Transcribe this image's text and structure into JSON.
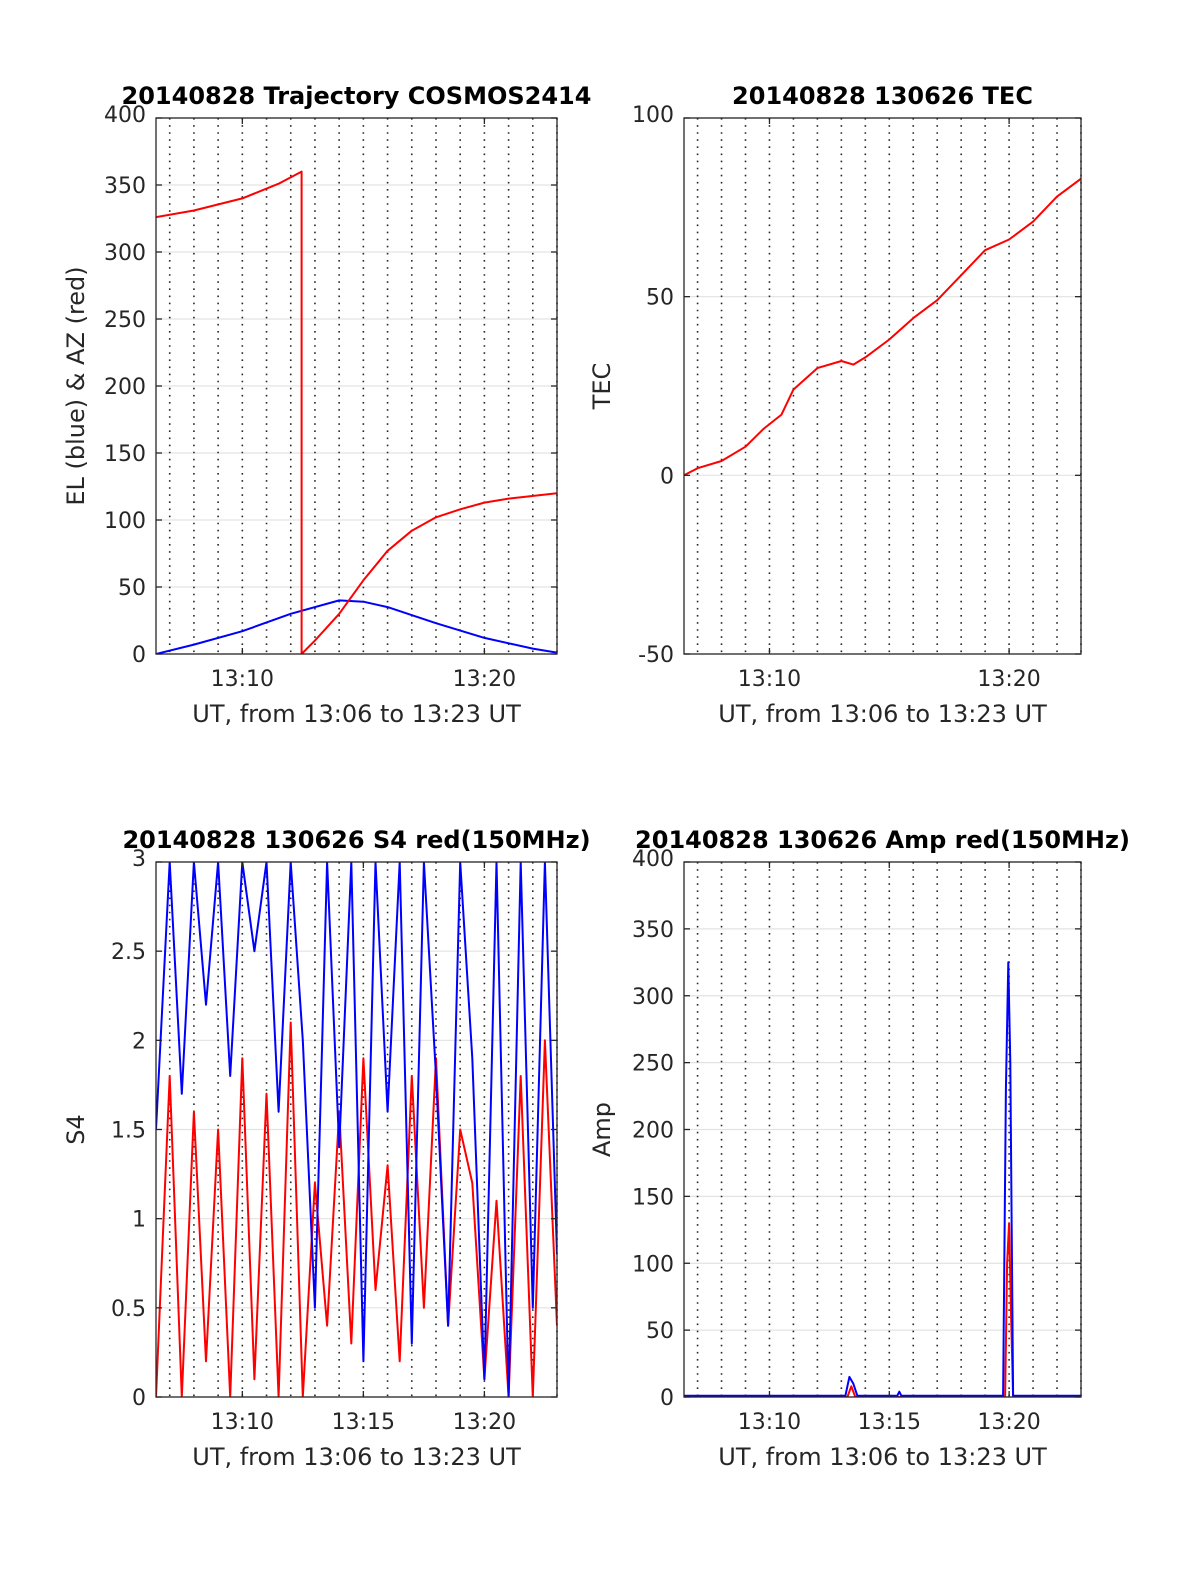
{
  "chart_data": [
    {
      "type": "line",
      "title": "20140828 Trajectory COSMOS2414",
      "xlabel": "UT, from 13:06 to 13:23 UT",
      "ylabel": "EL (blue) & AZ (red)",
      "xlim": [
        "13:06:26",
        "13:23:00"
      ],
      "ylim": [
        0,
        400
      ],
      "xticks": [
        "13:10",
        "13:20"
      ],
      "yticks": [
        "0",
        "50",
        "100",
        "150",
        "200",
        "250",
        "300",
        "350",
        "400"
      ],
      "grid": true,
      "minor_vertical_grid": "dotted, every 1 minute",
      "series": [
        {
          "color": "#0000ff",
          "x": [
            "13:06:26",
            "13:08:00",
            "13:10:00",
            "13:12:00",
            "13:14:00",
            "13:15:00",
            "13:16:00",
            "13:18:00",
            "13:20:00",
            "13:22:00",
            "13:23:00"
          ],
          "values": [
            0,
            7,
            17,
            30,
            40,
            39,
            35,
            23,
            12,
            4,
            1
          ]
        },
        {
          "color": "#ff0000",
          "x": [
            "13:06:26",
            "13:08:00",
            "13:10:00",
            "13:11:30",
            "13:12:27",
            "13:12:27",
            "13:13:00",
            "13:14:00",
            "13:15:00",
            "13:16:00",
            "13:17:00",
            "13:18:00",
            "13:19:00",
            "13:20:00",
            "13:21:00",
            "13:23:00"
          ],
          "values": [
            326,
            331,
            340,
            351,
            360,
            0,
            10,
            30,
            55,
            77,
            92,
            102,
            108,
            113,
            116,
            120
          ]
        }
      ]
    },
    {
      "type": "line",
      "title": "20140828 130626 TEC",
      "xlabel": "UT, from 13:06 to 13:23 UT",
      "ylabel": "TEC",
      "xlim": [
        "13:06:26",
        "13:23:00"
      ],
      "ylim": [
        -50,
        100
      ],
      "xticks": [
        "13:10",
        "13:20"
      ],
      "yticks": [
        "-50",
        "0",
        "50",
        "100"
      ],
      "grid": true,
      "minor_vertical_grid": "dotted, every 1 minute",
      "series": [
        {
          "color": "#ff0000",
          "x": [
            "13:06:26",
            "13:07:00",
            "13:08:00",
            "13:09:00",
            "13:09:45",
            "13:10:30",
            "13:11:00",
            "13:12:00",
            "13:13:00",
            "13:13:30",
            "13:14:00",
            "13:15:00",
            "13:16:00",
            "13:17:00",
            "13:18:00",
            "13:19:00",
            "13:20:00",
            "13:21:00",
            "13:22:00",
            "13:23:00"
          ],
          "values": [
            0,
            2,
            4,
            8,
            13,
            17,
            24,
            30,
            32,
            31,
            33,
            38,
            44,
            49,
            56,
            63,
            66,
            71,
            78,
            83
          ]
        }
      ]
    },
    {
      "type": "line",
      "title": "20140828 130626 S4 red(150MHz)",
      "xlabel": "UT, from 13:06 to 13:23 UT",
      "ylabel": "S4",
      "xlim": [
        "13:06:26",
        "13:23:00"
      ],
      "ylim": [
        0,
        3
      ],
      "xticks": [
        "13:10",
        "13:15",
        "13:20"
      ],
      "yticks": [
        "0",
        "0.5",
        "1",
        "1.5",
        "2",
        "2.5",
        "3"
      ],
      "grid": true,
      "minor_vertical_grid": "dotted, every 1 minute",
      "series": [
        {
          "color": "#ff0000",
          "x": [
            "13:06:26",
            "13:07:00",
            "13:07:30",
            "13:08:00",
            "13:08:30",
            "13:09:00",
            "13:09:30",
            "13:10:00",
            "13:10:30",
            "13:11:00",
            "13:11:30",
            "13:12:00",
            "13:12:30",
            "13:13:00",
            "13:13:30",
            "13:14:00",
            "13:14:30",
            "13:15:00",
            "13:15:30",
            "13:16:00",
            "13:16:30",
            "13:17:00",
            "13:17:30",
            "13:18:00",
            "13:18:30",
            "13:19:00",
            "13:19:30",
            "13:20:00",
            "13:20:30",
            "13:21:00",
            "13:21:30",
            "13:22:00",
            "13:22:30",
            "13:23:00"
          ],
          "values": [
            0,
            1.8,
            0,
            1.6,
            0.2,
            1.5,
            0,
            1.9,
            0.1,
            1.7,
            0,
            2.1,
            0,
            1.2,
            0.4,
            1.6,
            0.3,
            1.9,
            0.6,
            1.3,
            0.2,
            1.8,
            0.5,
            1.9,
            0.4,
            1.5,
            1.2,
            0.1,
            1.1,
            0,
            1.8,
            0,
            2.0,
            0.4
          ]
        },
        {
          "color": "#0000ff",
          "x": [
            "13:06:26",
            "13:07:00",
            "13:07:30",
            "13:08:00",
            "13:08:30",
            "13:09:00",
            "13:09:30",
            "13:10:00",
            "13:10:30",
            "13:11:00",
            "13:11:30",
            "13:12:00",
            "13:12:30",
            "13:13:00",
            "13:13:30",
            "13:14:00",
            "13:14:30",
            "13:15:00",
            "13:15:30",
            "13:16:00",
            "13:16:30",
            "13:17:00",
            "13:17:30",
            "13:18:00",
            "13:18:30",
            "13:19:00",
            "13:19:30",
            "13:20:00",
            "13:20:30",
            "13:21:00",
            "13:21:30",
            "13:22:00",
            "13:22:30",
            "13:23:00"
          ],
          "values": [
            1.5,
            3,
            1.7,
            3,
            2.2,
            3,
            1.8,
            3,
            2.5,
            3,
            1.6,
            3,
            2.0,
            0.5,
            3,
            1.4,
            3,
            0.2,
            3,
            1.6,
            3,
            0.3,
            3,
            1.8,
            0.4,
            3,
            1.9,
            0.1,
            3,
            0,
            3,
            0.5,
            3,
            0.8
          ]
        }
      ]
    },
    {
      "type": "line",
      "title": "20140828 130626 Amp red(150MHz)",
      "xlabel": "UT, from 13:06 to 13:23 UT",
      "ylabel": "Amp",
      "xlim": [
        "13:06:26",
        "13:23:00"
      ],
      "ylim": [
        0,
        400
      ],
      "xticks": [
        "13:10",
        "13:15",
        "13:20"
      ],
      "yticks": [
        "0",
        "50",
        "100",
        "150",
        "200",
        "250",
        "300",
        "350",
        "400"
      ],
      "grid": true,
      "minor_vertical_grid": "dotted, every 1 minute",
      "series": [
        {
          "color": "#ff0000",
          "x": [
            "13:06:26",
            "13:13:15",
            "13:13:25",
            "13:13:35",
            "13:19:50",
            "13:19:55",
            "13:20:00",
            "13:20:05",
            "13:20:10",
            "13:23:00"
          ],
          "values": [
            0,
            0,
            8,
            0,
            0,
            100,
            130,
            60,
            0,
            0
          ]
        },
        {
          "color": "#0000ff",
          "x": [
            "13:06:26",
            "13:13:10",
            "13:13:20",
            "13:13:30",
            "13:13:40",
            "13:15:20",
            "13:15:25",
            "13:15:30",
            "13:19:45",
            "13:19:52",
            "13:19:58",
            "13:20:03",
            "13:20:10",
            "13:23:00"
          ],
          "values": [
            1,
            1,
            15,
            10,
            1,
            1,
            4,
            1,
            1,
            230,
            325,
            250,
            1,
            1
          ]
        }
      ]
    }
  ]
}
